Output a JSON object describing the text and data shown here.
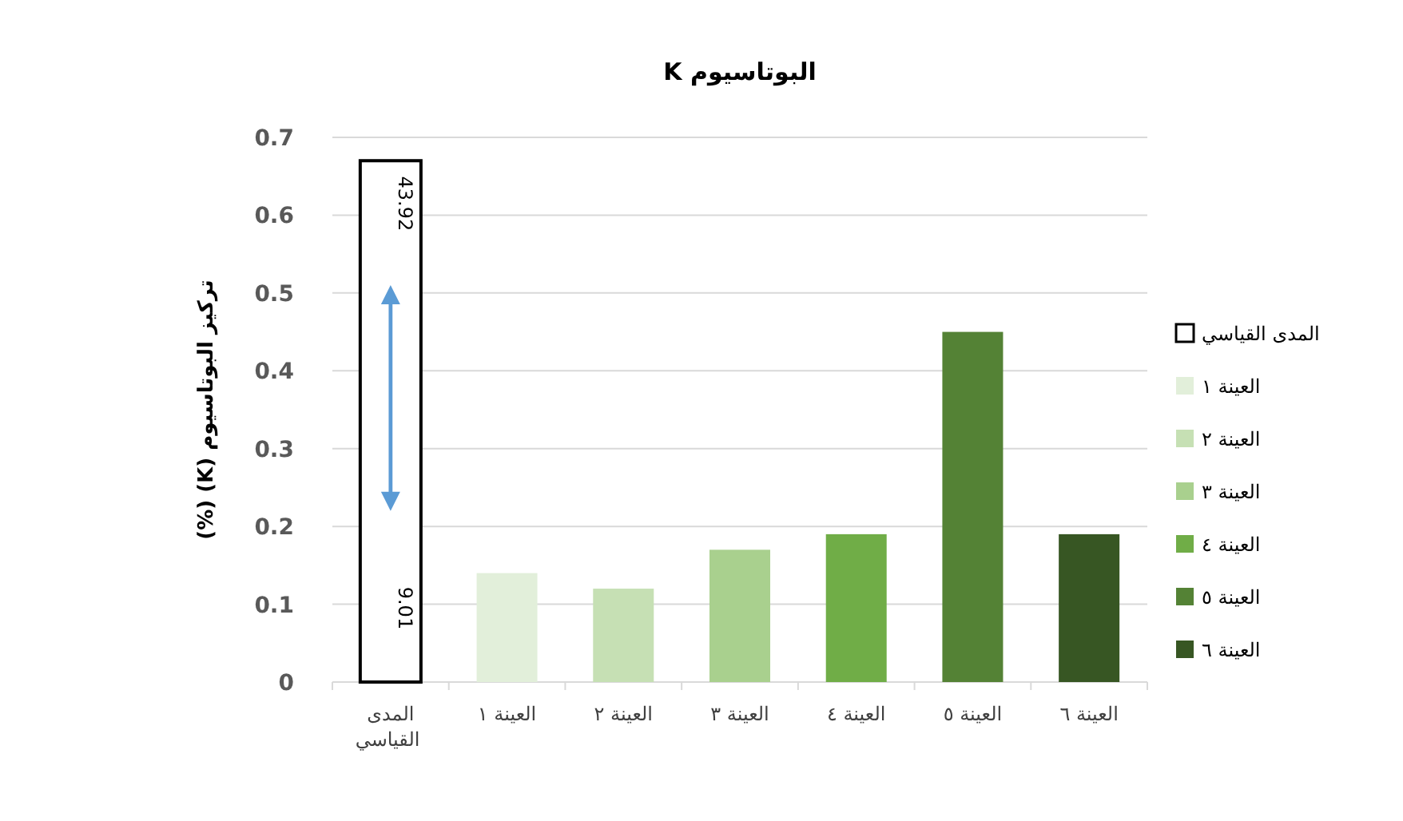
{
  "chart_data": {
    "type": "bar",
    "title": "البوتاسيوم K",
    "ylabel": "تركيز البوتاسيوم (K) (%)",
    "categories": [
      "المدى القياسي",
      "العينة ١",
      "العينة ٢",
      "العينة ٣",
      "العينة ٤",
      "العينة ٥",
      "العينة ٦"
    ],
    "series": [
      {
        "name": "المدى القياسي",
        "color": "#ffffff",
        "values": [
          0.67,
          null,
          null,
          null,
          null,
          null,
          null
        ]
      },
      {
        "name": "العينة ١",
        "color": "#e2efda",
        "values": [
          null,
          0.14,
          null,
          null,
          null,
          null,
          null
        ]
      },
      {
        "name": "العينة ٢",
        "color": "#c6e0b4",
        "values": [
          null,
          null,
          0.12,
          null,
          null,
          null,
          null
        ]
      },
      {
        "name": "العينة ٣",
        "color": "#a9d08e",
        "values": [
          null,
          null,
          null,
          0.17,
          null,
          null,
          null
        ]
      },
      {
        "name": "العينة ٤",
        "color": "#70ad47",
        "values": [
          null,
          null,
          null,
          null,
          0.19,
          null,
          null
        ]
      },
      {
        "name": "العينة ٥",
        "color": "#548235",
        "values": [
          null,
          null,
          null,
          null,
          null,
          0.45,
          null
        ]
      },
      {
        "name": "العينة ٦",
        "color": "#375623",
        "values": [
          null,
          null,
          null,
          null,
          null,
          null,
          0.19
        ]
      }
    ],
    "ylim": [
      0,
      0.7
    ],
    "yticks": [
      0,
      0.1,
      0.2,
      0.3,
      0.4,
      0.5,
      0.6,
      0.7
    ],
    "grid": "y",
    "legend": "right",
    "annotations": [
      "43.92",
      "9.01"
    ]
  }
}
